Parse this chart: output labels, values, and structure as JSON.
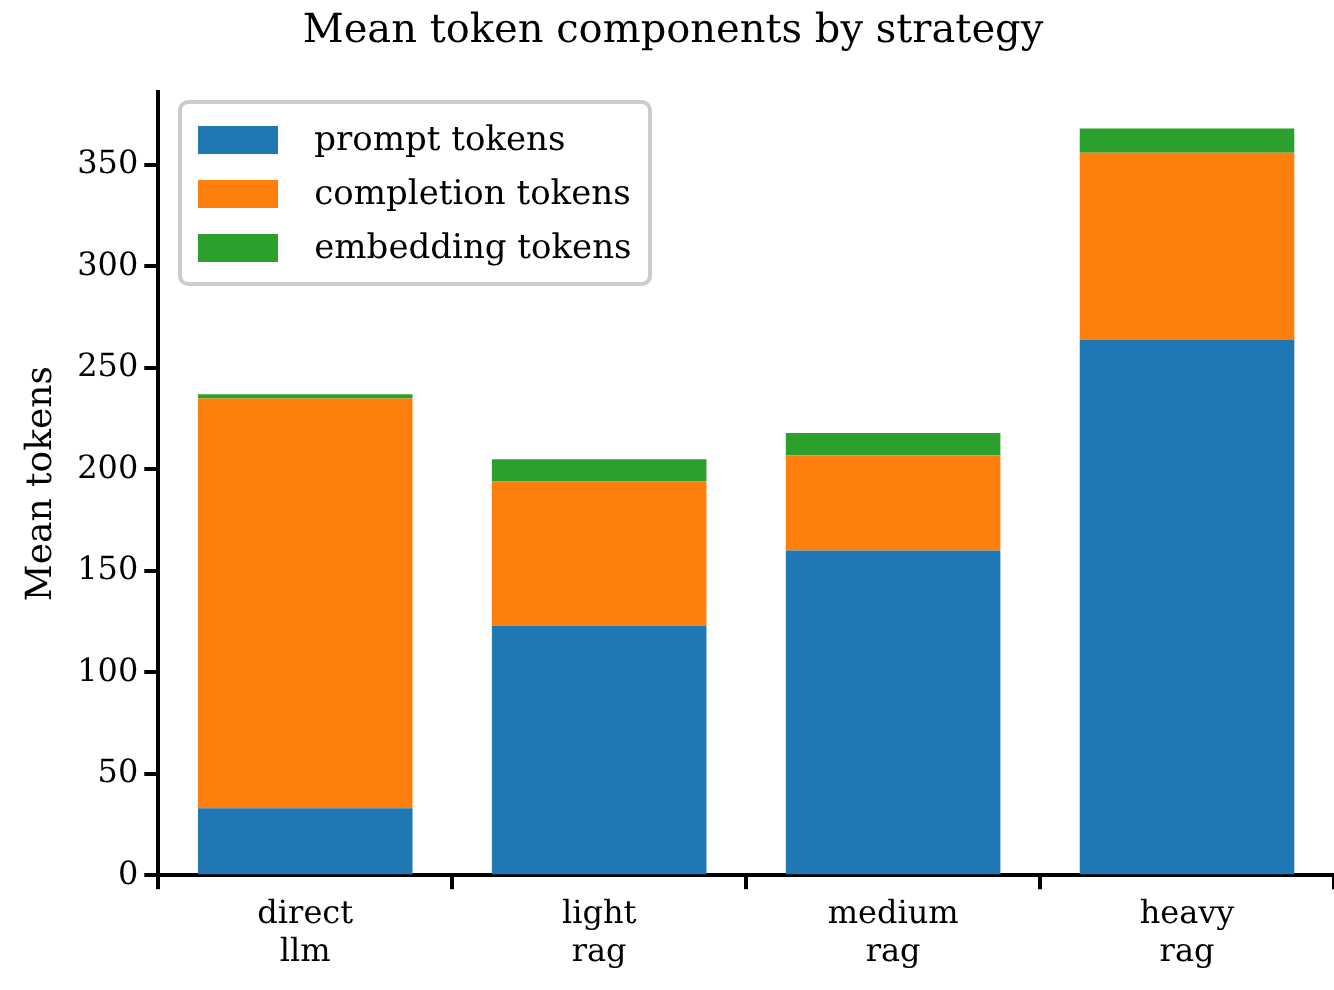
{
  "chart_data": {
    "type": "bar",
    "title": "Mean token components by strategy",
    "ylabel": "Mean tokens",
    "categories": [
      "direct\nllm",
      "light\nrag",
      "medium\nrag",
      "heavy\nrag"
    ],
    "stacked": true,
    "series": [
      {
        "name": "prompt tokens",
        "color": "#1f77b4",
        "values": [
          33,
          123,
          160,
          264
        ]
      },
      {
        "name": "completion tokens",
        "color": "#ff7f0e",
        "values": [
          202,
          71,
          47,
          92
        ]
      },
      {
        "name": "embedding tokens",
        "color": "#2ca02c",
        "values": [
          2,
          11,
          11,
          12
        ]
      }
    ],
    "ylim": [
      0,
      386
    ],
    "yticks": [
      0,
      50,
      100,
      150,
      200,
      250,
      300,
      350
    ],
    "grid": false,
    "legend": "top left"
  }
}
